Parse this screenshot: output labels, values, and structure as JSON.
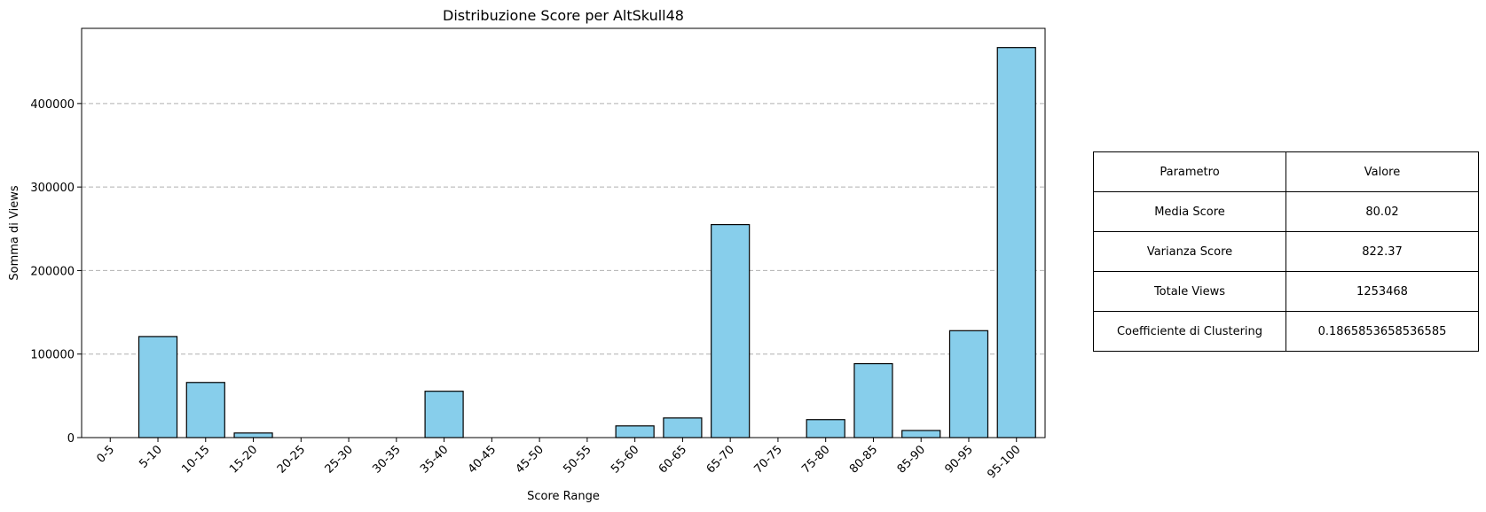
{
  "chart_data": {
    "type": "bar",
    "title": "Distribuzione Score per AltSkull48",
    "xlabel": "Score Range",
    "ylabel": "Somma di Views",
    "categories": [
      "0-5",
      "5-10",
      "10-15",
      "15-20",
      "20-25",
      "25-30",
      "30-35",
      "35-40",
      "40-45",
      "45-50",
      "50-55",
      "55-60",
      "60-65",
      "65-70",
      "70-75",
      "75-80",
      "80-85",
      "85-90",
      "90-95",
      "95-100"
    ],
    "values": [
      0,
      121000,
      66000,
      5500,
      0,
      0,
      0,
      55500,
      0,
      0,
      0,
      14000,
      23500,
      255000,
      0,
      21500,
      88500,
      8500,
      128000,
      467000
    ],
    "yticks": [
      0,
      100000,
      200000,
      300000,
      400000
    ],
    "ytick_labels": [
      "0",
      "100000",
      "200000",
      "300000",
      "400000"
    ],
    "ylim": [
      0,
      490000
    ],
    "bar_color": "#87ceeb",
    "edge_color": "#000000",
    "grid": "y-dashed"
  },
  "table": {
    "header": [
      "Parametro",
      "Valore"
    ],
    "rows": [
      [
        "Media Score",
        "80.02"
      ],
      [
        "Varianza Score",
        "822.37"
      ],
      [
        "Totale Views",
        "1253468"
      ],
      [
        "Coefficiente di Clustering",
        "0.1865853658536585"
      ]
    ]
  }
}
